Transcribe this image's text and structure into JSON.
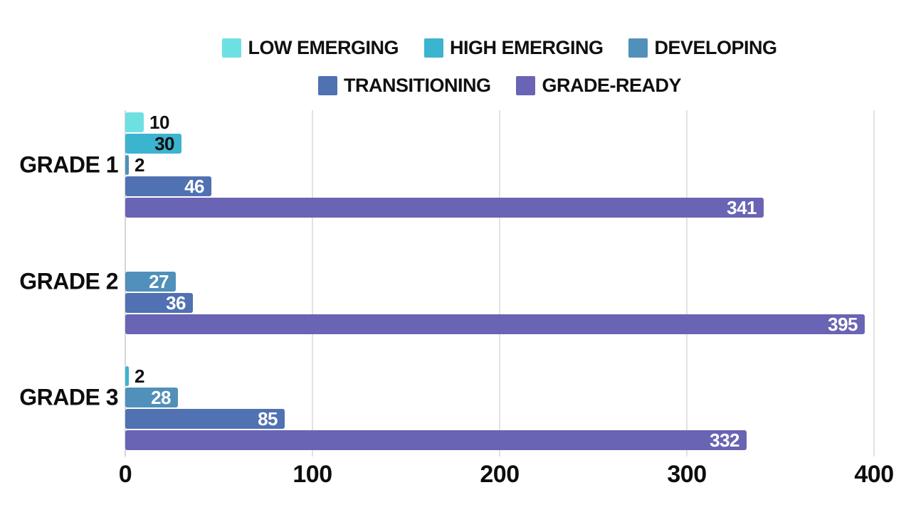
{
  "chart_data": {
    "type": "bar",
    "orientation": "horizontal",
    "title": "",
    "categories": [
      "GRADE 1",
      "GRADE 2",
      "GRADE 3"
    ],
    "series": [
      {
        "name": "LOW EMERGING",
        "color": "#6ee0e2",
        "label_color": "#101010",
        "values": [
          10,
          0,
          0
        ]
      },
      {
        "name": "HIGH EMERGING",
        "color": "#3cb3cf",
        "label_color": "#101010",
        "values": [
          30,
          0,
          2
        ]
      },
      {
        "name": "DEVELOPING",
        "color": "#5090ba",
        "label_color": "#ffffff",
        "values": [
          2,
          27,
          28
        ]
      },
      {
        "name": "TRANSITIONING",
        "color": "#5071b2",
        "label_color": "#ffffff",
        "values": [
          46,
          36,
          85
        ]
      },
      {
        "name": "GRADE-READY",
        "color": "#6a64b4",
        "label_color": "#ffffff",
        "values": [
          341,
          395,
          332
        ]
      }
    ],
    "x_ticks": [
      "0",
      "100",
      "200",
      "300",
      "400"
    ],
    "xlim": [
      0,
      400
    ],
    "grid": "vertical-major",
    "legend_position": "top"
  },
  "colors": {
    "background": "#ffffff",
    "gridline": "#e2e2e2",
    "axisline": "#d6d6d6",
    "text": "#0d0d0d"
  }
}
